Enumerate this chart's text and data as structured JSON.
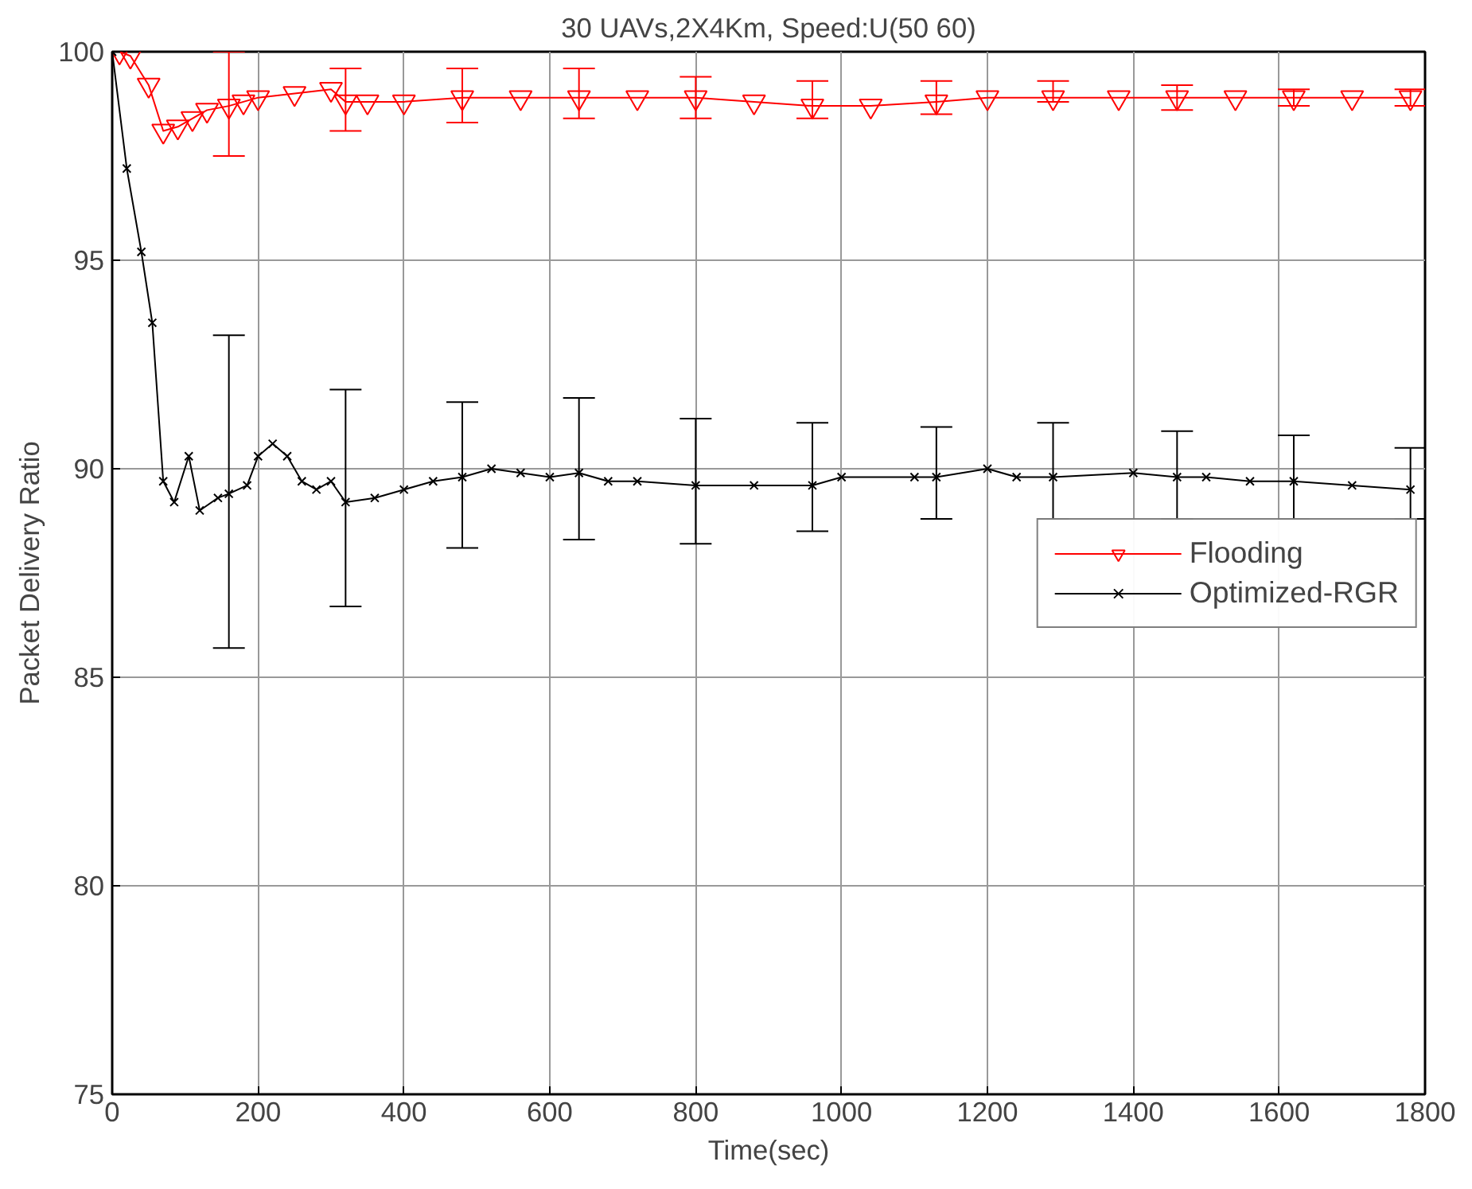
{
  "chart_data": {
    "type": "line",
    "title": "30 UAVs,2X4Km, Speed:U(50 60)",
    "xlabel": "Time(sec)",
    "ylabel": "Packet Delivery Ratio",
    "xlim": [
      0,
      1800
    ],
    "ylim": [
      75,
      100
    ],
    "xticks": [
      0,
      200,
      400,
      600,
      800,
      1000,
      1200,
      1400,
      1600,
      1800
    ],
    "yticks": [
      75,
      80,
      85,
      90,
      95,
      100
    ],
    "grid": true,
    "legend": "right",
    "line_style": "solid",
    "series": [
      {
        "name": "Flooding",
        "color": "#ff0000",
        "marker": "triangle",
        "x": [
          10,
          25,
          50,
          70,
          90,
          110,
          130,
          160,
          180,
          200,
          250,
          300,
          320,
          350,
          400,
          480,
          560,
          640,
          720,
          800,
          880,
          960,
          1040,
          1130,
          1200,
          1290,
          1380,
          1460,
          1540,
          1620,
          1700,
          1780
        ],
        "values": [
          100,
          99.9,
          99.2,
          98.1,
          98.2,
          98.4,
          98.6,
          98.7,
          98.8,
          98.9,
          99.0,
          99.1,
          98.8,
          98.8,
          98.8,
          98.9,
          98.9,
          98.9,
          98.9,
          98.9,
          98.8,
          98.7,
          98.7,
          98.8,
          98.9,
          98.9,
          98.9,
          98.9,
          98.9,
          98.9,
          98.9,
          98.9
        ],
        "errors": [
          null,
          null,
          null,
          null,
          null,
          null,
          null,
          [
            97.5,
            100
          ],
          null,
          null,
          null,
          null,
          [
            98.1,
            99.6
          ],
          null,
          null,
          [
            98.3,
            99.6
          ],
          null,
          [
            98.4,
            99.6
          ],
          null,
          [
            98.4,
            99.4
          ],
          null,
          [
            98.4,
            99.3
          ],
          null,
          [
            98.5,
            99.3
          ],
          null,
          [
            98.8,
            99.3
          ],
          null,
          [
            98.6,
            99.2
          ],
          null,
          [
            98.7,
            99.1
          ],
          null,
          [
            98.7,
            99.1
          ]
        ]
      },
      {
        "name": "Optimized-RGR",
        "color": "#000000",
        "marker": "cross",
        "x": [
          0,
          20,
          40,
          55,
          70,
          85,
          105,
          120,
          145,
          160,
          185,
          200,
          220,
          240,
          260,
          280,
          300,
          320,
          360,
          400,
          440,
          480,
          520,
          560,
          600,
          640,
          680,
          720,
          800,
          880,
          960,
          1000,
          1100,
          1130,
          1200,
          1240,
          1290,
          1400,
          1460,
          1500,
          1560,
          1620,
          1700,
          1780
        ],
        "values": [
          100,
          97.2,
          95.2,
          93.5,
          89.7,
          89.2,
          90.3,
          89.0,
          89.3,
          89.4,
          89.6,
          90.3,
          90.6,
          90.3,
          89.7,
          89.5,
          89.7,
          89.2,
          89.3,
          89.5,
          89.7,
          89.8,
          90.0,
          89.9,
          89.8,
          89.9,
          89.7,
          89.7,
          89.6,
          89.6,
          89.6,
          89.8,
          89.8,
          89.8,
          90.0,
          89.8,
          89.8,
          89.9,
          89.8,
          89.8,
          89.7,
          89.7,
          89.6,
          89.5
        ],
        "errors": [
          null,
          null,
          null,
          null,
          null,
          null,
          null,
          null,
          null,
          [
            85.7,
            93.2
          ],
          null,
          null,
          null,
          null,
          null,
          null,
          null,
          [
            86.7,
            91.9
          ],
          null,
          null,
          null,
          [
            88.1,
            91.6
          ],
          null,
          null,
          null,
          [
            88.3,
            91.7
          ],
          null,
          null,
          [
            88.2,
            91.2
          ],
          null,
          [
            88.5,
            91.1
          ],
          null,
          null,
          [
            88.8,
            91.0
          ],
          null,
          null,
          [
            88.8,
            91.1
          ],
          null,
          [
            88.8,
            90.9
          ],
          null,
          null,
          [
            88.8,
            90.8
          ],
          null,
          [
            88.8,
            90.5
          ]
        ]
      }
    ]
  }
}
